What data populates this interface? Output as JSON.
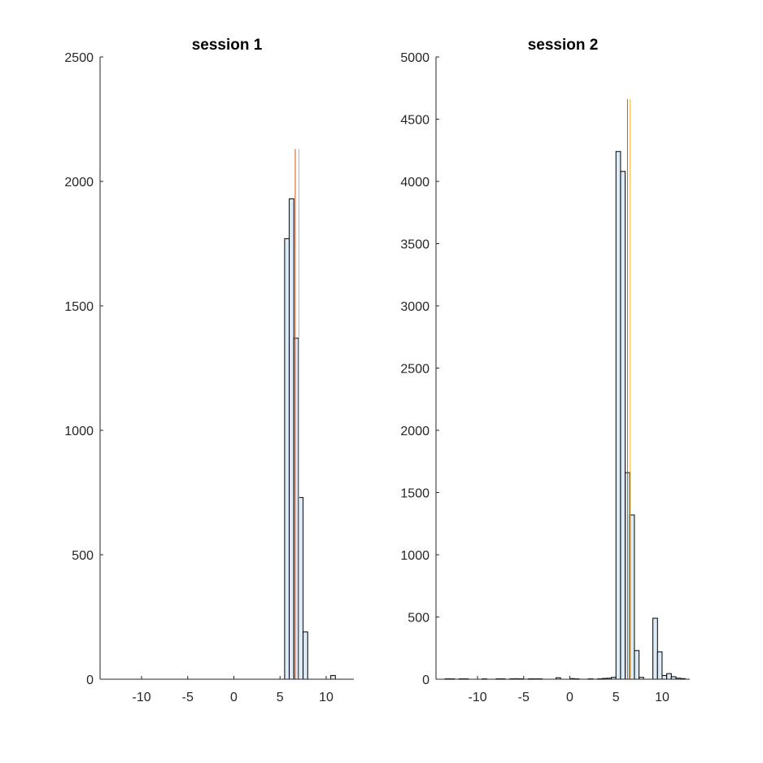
{
  "chart_data": [
    {
      "type": "bar",
      "title": "session 1",
      "xlabel": "",
      "ylabel": "",
      "xlim": [
        -14.5,
        13
      ],
      "ylim": [
        0,
        2500
      ],
      "xticks": [
        -10,
        -5,
        0,
        5,
        10
      ],
      "xtick_labels": [
        "-10",
        "-5",
        "0",
        "5",
        "10"
      ],
      "yticks": [
        0,
        500,
        1000,
        1500,
        2000,
        2500
      ],
      "ytick_labels": [
        "0",
        "500",
        "1000",
        "1500",
        "2000",
        "2500"
      ],
      "bin_width": 0.5,
      "bins": [
        {
          "x": 5.75,
          "y": 1770
        },
        {
          "x": 6.25,
          "y": 1930
        },
        {
          "x": 6.75,
          "y": 1370
        },
        {
          "x": 7.25,
          "y": 730
        },
        {
          "x": 7.75,
          "y": 190
        },
        {
          "x": 10.75,
          "y": 15
        }
      ],
      "vlines": [
        {
          "x": 6.65,
          "color": "#d95319",
          "top": 2130
        },
        {
          "x": 7.05,
          "color": "#edb120",
          "top": 2130
        }
      ]
    },
    {
      "type": "bar",
      "title": "session 2",
      "xlabel": "",
      "ylabel": "",
      "xlim": [
        -14.5,
        13
      ],
      "ylim": [
        0,
        5000
      ],
      "xticks": [
        -10,
        -5,
        0,
        5,
        10
      ],
      "xtick_labels": [
        "-10",
        "-5",
        "0",
        "5",
        "10"
      ],
      "yticks": [
        0,
        500,
        1000,
        1500,
        2000,
        2500,
        3000,
        3500,
        4000,
        4500,
        5000
      ],
      "ytick_labels": [
        "0",
        "500",
        "1000",
        "1500",
        "2000",
        "2500",
        "3000",
        "3500",
        "4000",
        "4500",
        "5000"
      ],
      "bin_width": 0.5,
      "bins": [
        {
          "x": -13.25,
          "y": 3
        },
        {
          "x": -12.75,
          "y": 3
        },
        {
          "x": -11.75,
          "y": 3
        },
        {
          "x": -11.25,
          "y": 3
        },
        {
          "x": -9.25,
          "y": 3
        },
        {
          "x": -7.75,
          "y": 3
        },
        {
          "x": -7.25,
          "y": 3
        },
        {
          "x": -6.25,
          "y": 3
        },
        {
          "x": -5.75,
          "y": 4
        },
        {
          "x": -5.25,
          "y": 3
        },
        {
          "x": -4.25,
          "y": 3
        },
        {
          "x": -3.75,
          "y": 3
        },
        {
          "x": -3.25,
          "y": 3
        },
        {
          "x": -1.25,
          "y": 12
        },
        {
          "x": 0.25,
          "y": 5
        },
        {
          "x": 0.75,
          "y": 3
        },
        {
          "x": 2.25,
          "y": 3
        },
        {
          "x": 3.25,
          "y": 3
        },
        {
          "x": 3.75,
          "y": 6
        },
        {
          "x": 4.25,
          "y": 8
        },
        {
          "x": 4.75,
          "y": 15
        },
        {
          "x": 5.25,
          "y": 4240
        },
        {
          "x": 5.75,
          "y": 4080
        },
        {
          "x": 6.25,
          "y": 1660
        },
        {
          "x": 6.75,
          "y": 1320
        },
        {
          "x": 7.25,
          "y": 230
        },
        {
          "x": 7.75,
          "y": 15
        },
        {
          "x": 9.25,
          "y": 490
        },
        {
          "x": 9.75,
          "y": 220
        },
        {
          "x": 10.25,
          "y": 30
        },
        {
          "x": 10.75,
          "y": 45
        },
        {
          "x": 11.25,
          "y": 20
        },
        {
          "x": 11.75,
          "y": 8
        },
        {
          "x": 12.25,
          "y": 5
        }
      ],
      "vlines": [
        {
          "x": 6.25,
          "color": "#d95319",
          "top": 4660
        },
        {
          "x": 6.55,
          "color": "#edb120",
          "top": 4660
        }
      ]
    }
  ]
}
